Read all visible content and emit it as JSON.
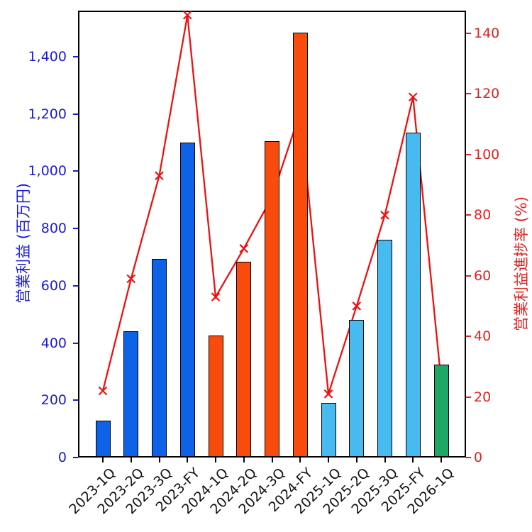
{
  "chart_data": {
    "type": "bar",
    "combo": "bar+line",
    "categories": [
      "2023-1Q",
      "2023-2Q",
      "2023-3Q",
      "2023-FY",
      "2024-1Q",
      "2024-2Q",
      "2024-3Q",
      "2024-FY",
      "2025-1Q",
      "2025-2Q",
      "2025-3Q",
      "2025-FY",
      "2026-1Q"
    ],
    "series": [
      {
        "name": "営業利益",
        "type": "bar",
        "axis": "left",
        "values": [
          130,
          440,
          695,
          1100,
          425,
          685,
          1105,
          1485,
          190,
          480,
          760,
          1135,
          325
        ],
        "bar_colors": [
          "#0e62e8",
          "#0e62e8",
          "#0e62e8",
          "#0e62e8",
          "#f84b0c",
          "#f84b0c",
          "#f84b0c",
          "#f84b0c",
          "#47bbf0",
          "#47bbf0",
          "#47bbf0",
          "#47bbf0",
          "#1da965"
        ]
      },
      {
        "name": "営業利益進捗率",
        "type": "line",
        "axis": "right",
        "values": [
          22,
          59,
          93,
          146,
          53,
          69,
          86,
          114,
          21,
          50,
          80,
          119,
          25
        ],
        "color": "#ee1111",
        "marker": "x"
      }
    ],
    "left_axis": {
      "label": "営業利益 (百万円)",
      "color": "#1a1ad8",
      "ticks": [
        0,
        200,
        400,
        600,
        800,
        1000,
        1200,
        1400
      ],
      "tick_labels": [
        "0",
        "200",
        "400",
        "600",
        "800",
        "1,000",
        "1,200",
        "1,400"
      ],
      "min": 0,
      "max": 1561
    },
    "right_axis": {
      "label": "営業利益進捗率 (%)",
      "color": "#e42020",
      "ticks": [
        0,
        20,
        40,
        60,
        80,
        100,
        120,
        140
      ],
      "tick_labels": [
        "0",
        "20",
        "40",
        "60",
        "80",
        "100",
        "120",
        "140"
      ],
      "min": 0,
      "max": 147.5
    },
    "grid": false,
    "legend_position": "none",
    "title": ""
  }
}
